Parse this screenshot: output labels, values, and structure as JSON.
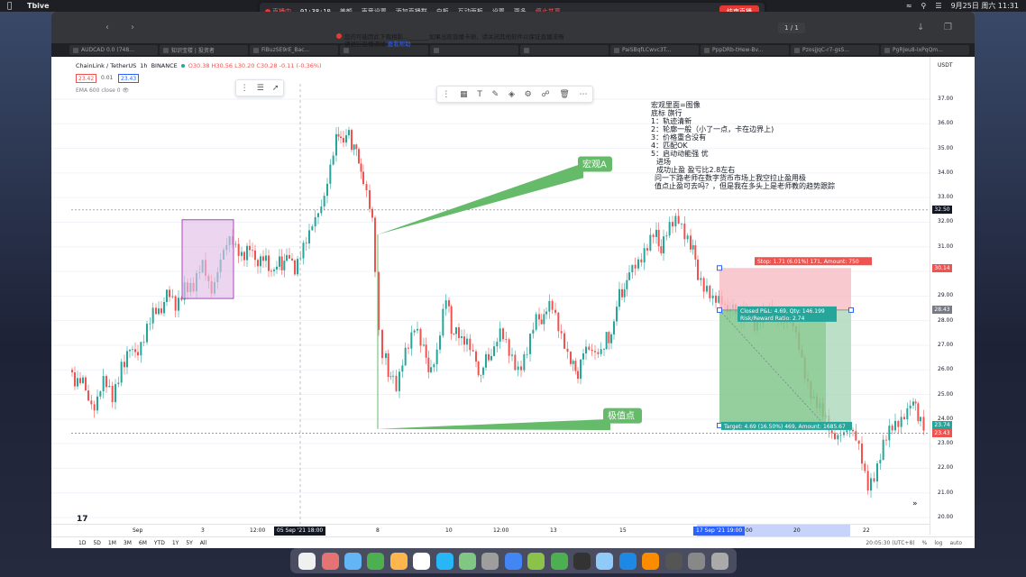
{
  "menubar": {
    "app_name": "Tbive",
    "clock": "9月25日 周六 11:31"
  },
  "recbar": {
    "status": "直播中",
    "time": "01:38:10",
    "items": [
      "美颜",
      "声音设置",
      "添加直播群",
      "白板",
      "互动面板",
      "设置",
      "更多"
    ],
    "stop_share": "停止共享",
    "end_live": "结束直播"
  },
  "browser": {
    "page_indicator": "1 / 1",
    "tabs": [
      "AUDCAD 0.0 (748...",
      "知识宝楼 | 投资者",
      "FiBuzSE9rE_Bac...",
      "",
      "",
      "",
      "PaiSBqfLCwvc3T...",
      "PppDRb-tHew-Bv...",
      "PzosjJqC-r7-gsS...",
      "PgRJeu8-IxPqQm..."
    ]
  },
  "notice": {
    "line1": "您的可能因此下载相影..._______如果出现直播卡顿，请关闭其他软件以保证直播流畅",
    "line2": "请进行直播调试",
    "link": "查看帮助"
  },
  "tv": {
    "symbol": "ChainLink / TetherUS",
    "interval": "1h",
    "exchange": "BINANCE",
    "ohlc": "O30.38 H30.56 L30.20 C30.28 -0.11 (-0.36%)",
    "bid": "23.42",
    "spread": "0.01",
    "ask": "23.43",
    "ema": "EMA 600 close 0",
    "currency": "USDT"
  },
  "yscale": {
    "ticks": [
      "37.00",
      "36.00",
      "35.00",
      "34.00",
      "33.00",
      "32.00",
      "31.00",
      "29.00",
      "28.00",
      "27.00",
      "26.00",
      "25.00",
      "24.00",
      "23.00",
      "22.00",
      "21.00",
      "20.00"
    ],
    "labels": {
      "current_line": "32.50",
      "stop": "30.14",
      "entry": "28.43",
      "last_a": "23.74",
      "last_b": "23.43"
    }
  },
  "xscale": {
    "ticks": [
      "Sep",
      "3",
      "12:00",
      "8",
      "10",
      "12:00",
      "13",
      "15",
      "20",
      "22"
    ],
    "cursor_label": "05 Sep '21   18:00",
    "range_label": "17 Sep '21   19:00",
    "range_end_tick": "00"
  },
  "bottombar": {
    "periods": [
      "1D",
      "5D",
      "1M",
      "3M",
      "6M",
      "YTD",
      "1Y",
      "5Y",
      "All"
    ],
    "time": "20:05:30 (UTC+8)",
    "percent": "%",
    "log": "log",
    "auto": "auto"
  },
  "position": {
    "stop_label": "Stop: 1.71 (6.01%) 171, Amount: 750",
    "closed_label": "Closed P&L: 4.69, Qty: 146.199",
    "ratio_label": "Risk/Reward Ratio: 2.74",
    "target_label": "Target: 4.69 (16.50%) 469, Amount: 1685.67"
  },
  "callouts": {
    "macro": "宏观A",
    "extreme": "极值点"
  },
  "notes": [
    "宏观里面=图像",
    "底标  旗行",
    "1：轨迹清新",
    "2：轮廓一般（小了一点，卡在边界上)",
    "3：价格重合没有",
    "4：匹配OK",
    "5：启动动能强    优",
    "进场",
    "成功止盈     盈亏比2.8左右",
    "问一下路老师在数字货币市场上我空拉止盈用极",
    "值点止盈可去吗？，但是我在多头上是老师教的趋势跟踪"
  ],
  "colors": {
    "up": "#26a69a",
    "down": "#ef5350",
    "box_fill": "#e1bee7",
    "box_stroke": "#ab47bc",
    "callout": "#66bb6a",
    "stop_zone": "#f8bbc4",
    "target_zone": "#a5d6b4"
  }
}
